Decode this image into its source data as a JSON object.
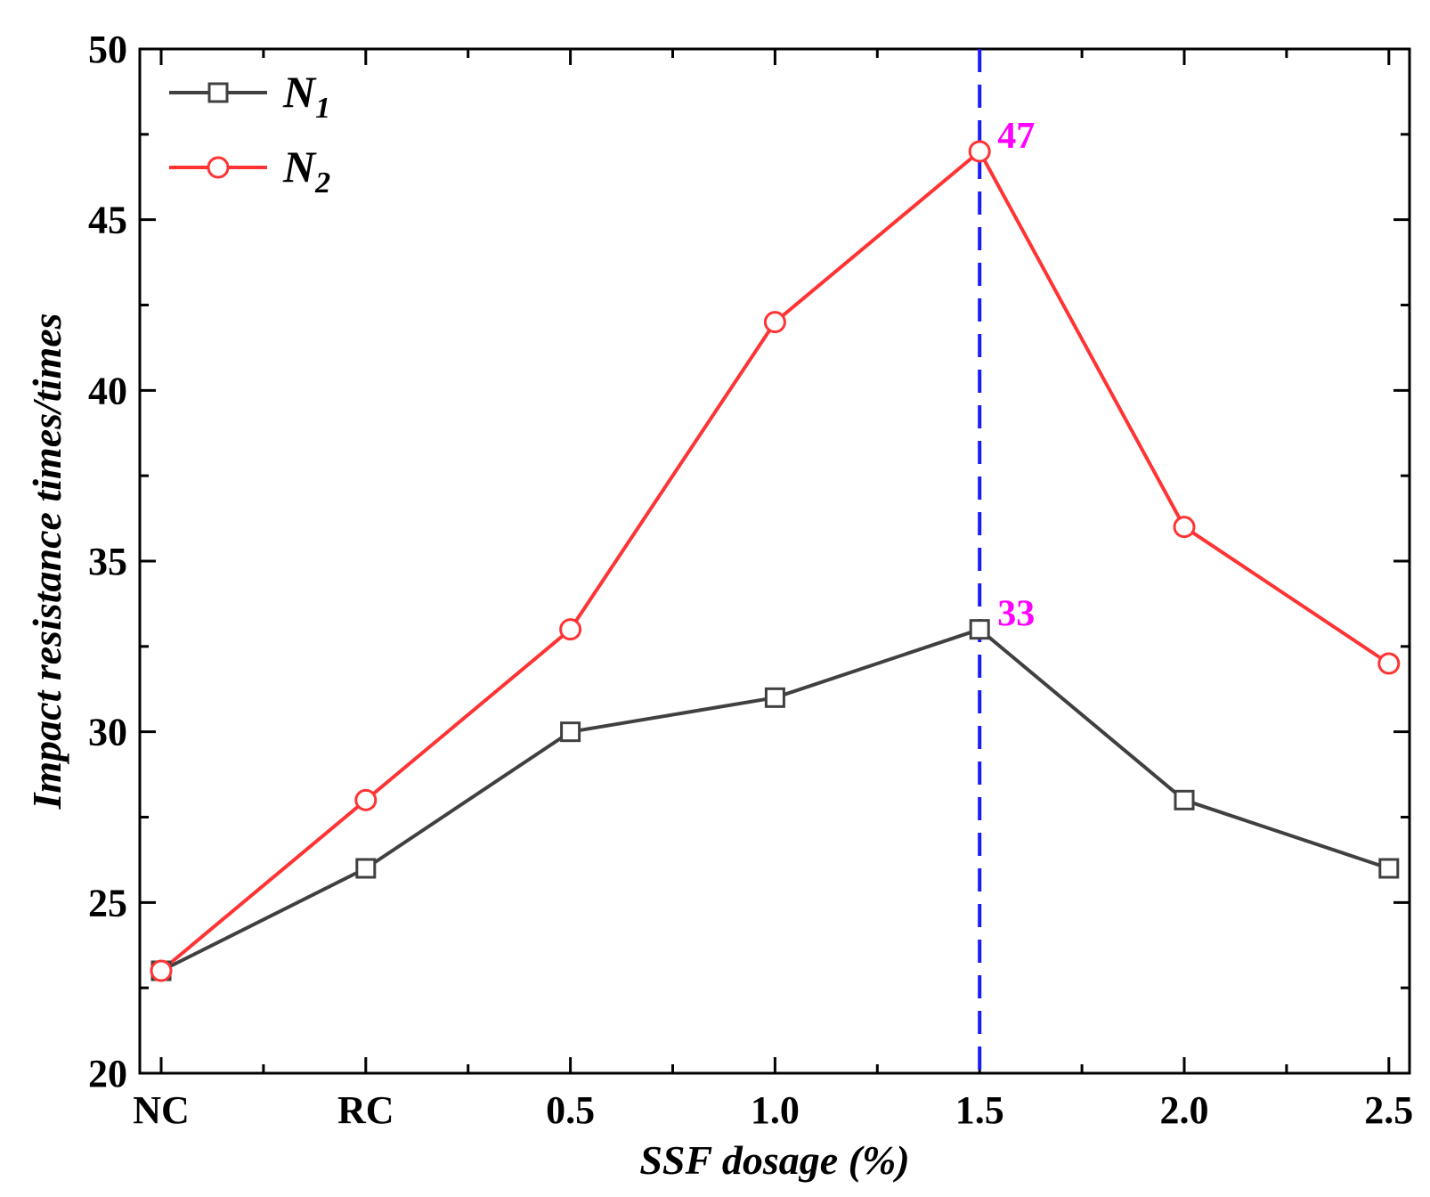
{
  "chart_data": {
    "type": "line",
    "categories": [
      "NC",
      "RC",
      "0.5",
      "1.0",
      "1.5",
      "2.0",
      "2.5"
    ],
    "series": [
      {
        "name": "N",
        "sub": "1",
        "values": [
          23,
          26,
          30,
          31,
          33,
          28,
          26
        ],
        "color": "#404040",
        "marker": "square"
      },
      {
        "name": "N",
        "sub": "2",
        "values": [
          23,
          28,
          33,
          42,
          47,
          36,
          32
        ],
        "color": "#ff3333",
        "marker": "circle"
      }
    ],
    "ylim": [
      20,
      50
    ],
    "yticks": [
      "20",
      "25",
      "30",
      "35",
      "40",
      "45",
      "50"
    ],
    "xlabel": "SSF dosage (%)",
    "ylabel": "Impact resistance times/times",
    "legend_position": "top-left",
    "reference_line": {
      "category": "1.5",
      "color": "#1a1aff",
      "style": "dashed"
    },
    "annotations": [
      {
        "text": "47",
        "category": "1.5",
        "value": 47,
        "color": "#ff00ff"
      },
      {
        "text": "33",
        "category": "1.5",
        "value": 33,
        "color": "#ff00ff"
      }
    ]
  }
}
